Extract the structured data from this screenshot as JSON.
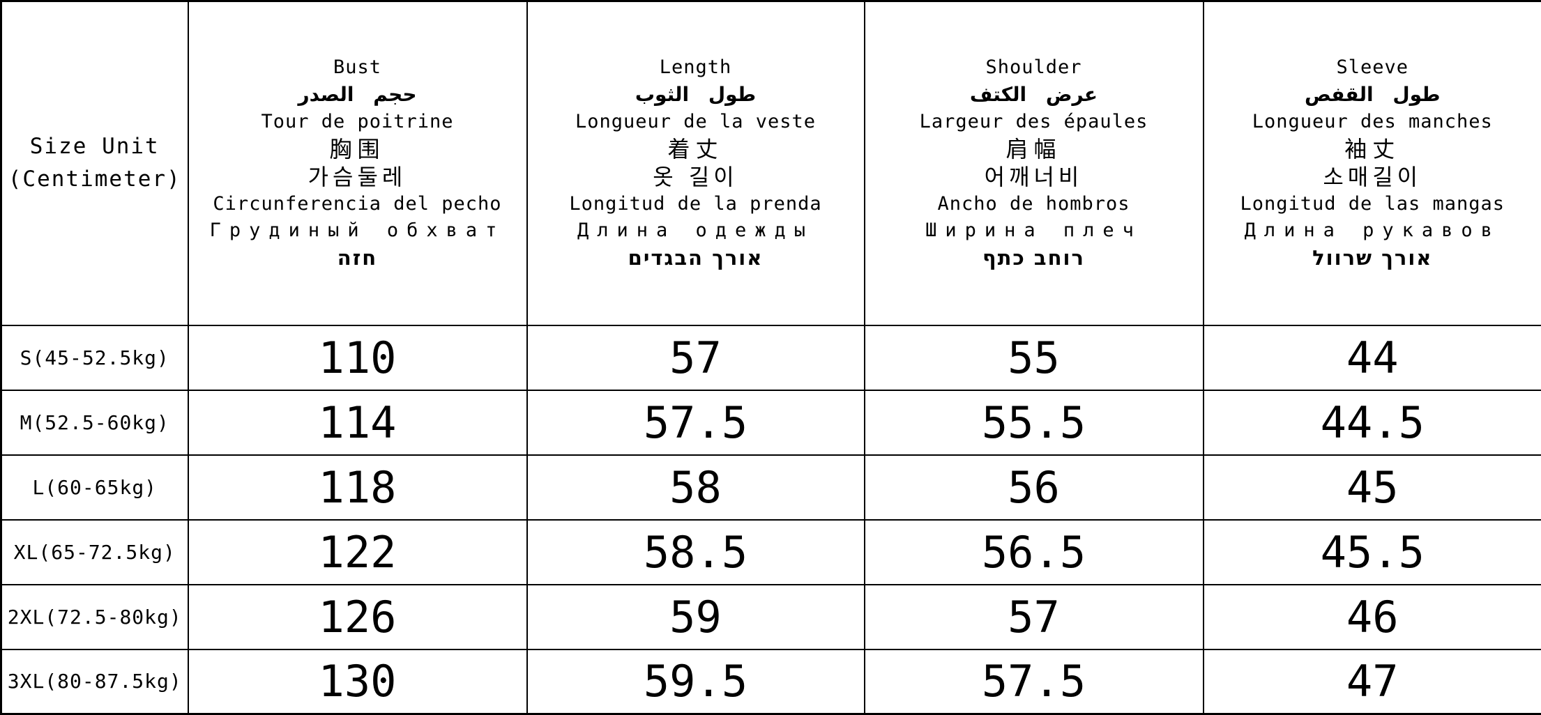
{
  "sizeChart": {
    "corner": {
      "line1": "Size Unit",
      "line2": "(Centimeter)"
    },
    "columns": [
      {
        "en": "Bust",
        "ar": "حجم الصدر",
        "fr": "Tour de poitrine",
        "zh": "胸围",
        "ko": "가슴둘레",
        "es": "Circunferencia del pecho",
        "ru": "Грудиный обхват",
        "he": "חזה"
      },
      {
        "en": "Length",
        "ar": "طول الثوب",
        "fr": "Longueur de la veste",
        "zh": "着丈",
        "ko": "옷 길이",
        "es": "Longitud de la prenda",
        "ru": "Длина одежды",
        "he": "אורך הבגדים"
      },
      {
        "en": "Shoulder",
        "ar": "عرض الكتف",
        "fr": "Largeur des épaules",
        "zh": "肩幅",
        "ko": "어깨너비",
        "es": "Ancho de hombros",
        "ru": "Ширина плеч",
        "he": "רוחב כתף"
      },
      {
        "en": "Sleeve",
        "ar": "طول القفص",
        "fr": "Longueur des manches",
        "zh": "袖丈",
        "ko": "소매길이",
        "es": "Longitud de las mangas",
        "ru": "Длина рукавов",
        "he": "אורך שרוול"
      }
    ],
    "rows": [
      {
        "size": "S(45-52.5kg)",
        "bust": "110",
        "length": "57",
        "shoulder": "55",
        "sleeve": "44"
      },
      {
        "size": "M(52.5-60kg)",
        "bust": "114",
        "length": "57.5",
        "shoulder": "55.5",
        "sleeve": "44.5"
      },
      {
        "size": "L(60-65kg)",
        "bust": "118",
        "length": "58",
        "shoulder": "56",
        "sleeve": "45"
      },
      {
        "size": "XL(65-72.5kg)",
        "bust": "122",
        "length": "58.5",
        "shoulder": "56.5",
        "sleeve": "45.5"
      },
      {
        "size": "2XL(72.5-80kg)",
        "bust": "126",
        "length": "59",
        "shoulder": "57",
        "sleeve": "46"
      },
      {
        "size": "3XL(80-87.5kg)",
        "bust": "130",
        "length": "59.5",
        "shoulder": "57.5",
        "sleeve": "47"
      }
    ]
  }
}
